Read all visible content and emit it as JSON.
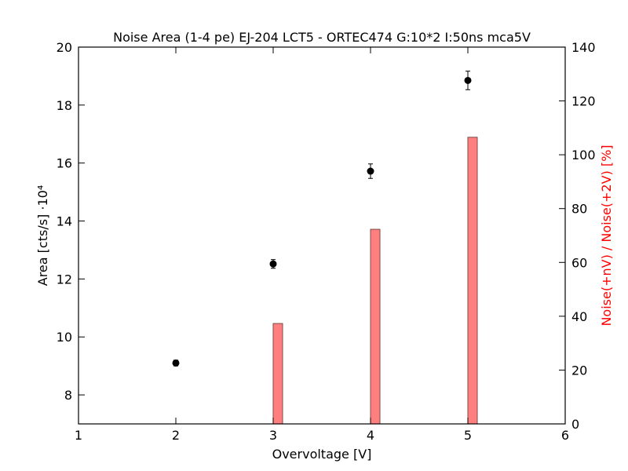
{
  "chart_data": {
    "type": "scatter",
    "title": "Noise Area (1-4 pe) EJ-204 LCT5 - ORTEC474 G:10*2 I:50ns mca5V",
    "xlabel": "Overvoltage [V]",
    "ylabel": "Area [cts/s] ·10⁴",
    "ylabel_right": "Noise(+nV) / Noise(+2V) [%]",
    "xlim": [
      1,
      6
    ],
    "ylim": [
      7,
      20
    ],
    "ylim_right": [
      0,
      140
    ],
    "x_ticks": [
      "1",
      "2",
      "3",
      "4",
      "5",
      "6"
    ],
    "y_ticks": [
      "8",
      "10",
      "12",
      "14",
      "16",
      "18",
      "20"
    ],
    "y_right_ticks": [
      "0",
      "20",
      "40",
      "60",
      "80",
      "100",
      "120",
      "140"
    ],
    "grid": false,
    "points": {
      "x": [
        2,
        3,
        4,
        5
      ],
      "y": [
        9.1,
        12.52,
        15.72,
        18.85
      ],
      "yerr": [
        0.1,
        0.15,
        0.25,
        0.32
      ],
      "color": "#000000"
    },
    "bars": {
      "x": [
        3,
        4,
        5
      ],
      "values": [
        37.3,
        72.3,
        106.5
      ],
      "axis": "right",
      "fill": "#ff7f7f",
      "edge": "#7a4b4b"
    }
  }
}
